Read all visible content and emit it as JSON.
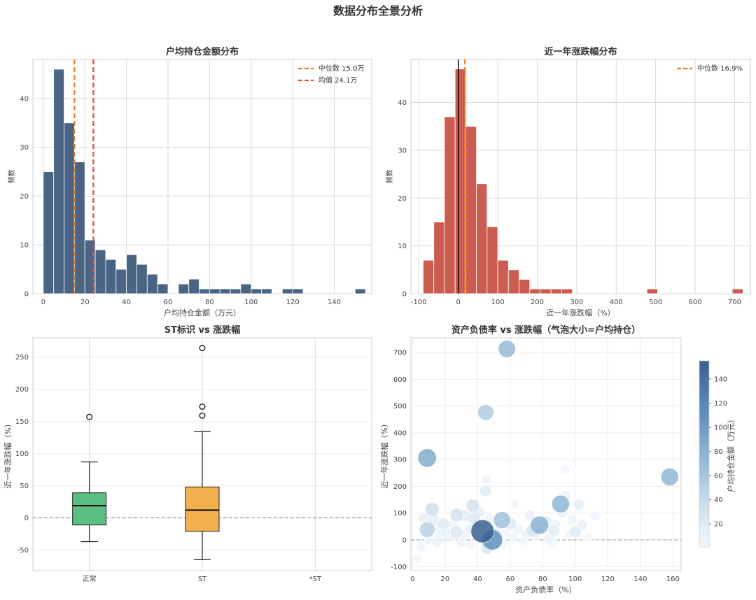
{
  "figure": {
    "suptitle": "数据分布全景分析"
  },
  "chart_data": [
    {
      "type": "histogram",
      "title": "户均持仓金额分布",
      "xlabel": "户均持仓金额（万元）",
      "ylabel": "频数",
      "xlim": [
        -5,
        158
      ],
      "ylim": [
        0,
        48
      ],
      "xticks": [
        0,
        20,
        40,
        60,
        80,
        100,
        120,
        140
      ],
      "yticks": [
        0,
        10,
        20,
        30,
        40
      ],
      "bin_width": 5,
      "bar_color": "#4a6584",
      "bins": [
        {
          "x0": 0,
          "x1": 5,
          "count": 25
        },
        {
          "x0": 5,
          "x1": 10,
          "count": 46
        },
        {
          "x0": 10,
          "x1": 15,
          "count": 35
        },
        {
          "x0": 15,
          "x1": 20,
          "count": 27
        },
        {
          "x0": 20,
          "x1": 25,
          "count": 11
        },
        {
          "x0": 25,
          "x1": 30,
          "count": 9
        },
        {
          "x0": 30,
          "x1": 35,
          "count": 7
        },
        {
          "x0": 35,
          "x1": 40,
          "count": 5
        },
        {
          "x0": 40,
          "x1": 45,
          "count": 8
        },
        {
          "x0": 45,
          "x1": 50,
          "count": 6
        },
        {
          "x0": 50,
          "x1": 55,
          "count": 4
        },
        {
          "x0": 55,
          "x1": 60,
          "count": 2
        },
        {
          "x0": 60,
          "x1": 65,
          "count": 0
        },
        {
          "x0": 65,
          "x1": 70,
          "count": 2
        },
        {
          "x0": 70,
          "x1": 75,
          "count": 3
        },
        {
          "x0": 75,
          "x1": 80,
          "count": 1
        },
        {
          "x0": 80,
          "x1": 85,
          "count": 1
        },
        {
          "x0": 85,
          "x1": 90,
          "count": 1
        },
        {
          "x0": 90,
          "x1": 95,
          "count": 1
        },
        {
          "x0": 95,
          "x1": 100,
          "count": 2
        },
        {
          "x0": 100,
          "x1": 105,
          "count": 1
        },
        {
          "x0": 105,
          "x1": 110,
          "count": 1
        },
        {
          "x0": 110,
          "x1": 115,
          "count": 0
        },
        {
          "x0": 115,
          "x1": 120,
          "count": 1
        },
        {
          "x0": 120,
          "x1": 125,
          "count": 1
        },
        {
          "x0": 125,
          "x1": 130,
          "count": 0
        },
        {
          "x0": 130,
          "x1": 135,
          "count": 0
        },
        {
          "x0": 135,
          "x1": 140,
          "count": 0
        },
        {
          "x0": 140,
          "x1": 145,
          "count": 0
        },
        {
          "x0": 145,
          "x1": 150,
          "count": 0
        },
        {
          "x0": 150,
          "x1": 155,
          "count": 1
        }
      ],
      "vlines": [
        {
          "x": 15.0,
          "color": "#e67e22",
          "label": "中位数 15.0万"
        },
        {
          "x": 24.1,
          "color": "#e74c3c",
          "label": "均值 24.1万"
        }
      ],
      "legend": "top-right"
    },
    {
      "type": "histogram",
      "title": "近一年涨跌幅分布",
      "xlabel": "近一年涨跌幅（%）",
      "ylabel": "频数",
      "xlim": [
        -120,
        740
      ],
      "ylim": [
        0,
        49
      ],
      "xticks": [
        -100,
        0,
        100,
        200,
        300,
        400,
        500,
        600,
        700
      ],
      "yticks": [
        0,
        10,
        20,
        30,
        40
      ],
      "bin_width": 27,
      "bar_color": "#cd5c50",
      "bins": [
        {
          "x0": -89,
          "x1": -62,
          "count": 7
        },
        {
          "x0": -62,
          "x1": -35,
          "count": 15
        },
        {
          "x0": -35,
          "x1": -8,
          "count": 37
        },
        {
          "x0": -8,
          "x1": 19,
          "count": 47
        },
        {
          "x0": 19,
          "x1": 46,
          "count": 35
        },
        {
          "x0": 46,
          "x1": 73,
          "count": 23
        },
        {
          "x0": 73,
          "x1": 100,
          "count": 14
        },
        {
          "x0": 100,
          "x1": 127,
          "count": 7
        },
        {
          "x0": 127,
          "x1": 154,
          "count": 5
        },
        {
          "x0": 154,
          "x1": 181,
          "count": 3
        },
        {
          "x0": 181,
          "x1": 208,
          "count": 1
        },
        {
          "x0": 208,
          "x1": 235,
          "count": 1
        },
        {
          "x0": 235,
          "x1": 262,
          "count": 1
        },
        {
          "x0": 262,
          "x1": 289,
          "count": 1
        },
        {
          "x0": 289,
          "x1": 316,
          "count": 0
        },
        {
          "x0": 316,
          "x1": 343,
          "count": 0
        },
        {
          "x0": 343,
          "x1": 370,
          "count": 0
        },
        {
          "x0": 370,
          "x1": 397,
          "count": 0
        },
        {
          "x0": 397,
          "x1": 424,
          "count": 0
        },
        {
          "x0": 424,
          "x1": 451,
          "count": 0
        },
        {
          "x0": 451,
          "x1": 478,
          "count": 0
        },
        {
          "x0": 478,
          "x1": 505,
          "count": 1
        },
        {
          "x0": 505,
          "x1": 532,
          "count": 0
        },
        {
          "x0": 532,
          "x1": 559,
          "count": 0
        },
        {
          "x0": 559,
          "x1": 586,
          "count": 0
        },
        {
          "x0": 586,
          "x1": 613,
          "count": 0
        },
        {
          "x0": 613,
          "x1": 640,
          "count": 0
        },
        {
          "x0": 640,
          "x1": 667,
          "count": 0
        },
        {
          "x0": 667,
          "x1": 694,
          "count": 0
        },
        {
          "x0": 694,
          "x1": 721,
          "count": 1
        }
      ],
      "zero_line": 0,
      "vlines": [
        {
          "x": 16.9,
          "color": "#e67e22",
          "label": "中位数 16.9%"
        }
      ],
      "legend": "top-right"
    },
    {
      "type": "box",
      "title": "ST标识 vs 涨跌幅",
      "xlabel": "",
      "ylabel": "近一年涨跌幅（%）",
      "ylim": [
        -82,
        280
      ],
      "yticks": [
        -50,
        0,
        50,
        100,
        150,
        200,
        250
      ],
      "reference_line": 0,
      "groups": [
        {
          "label": "正常",
          "color": "#5bbf85",
          "whisker_low": -37,
          "q1": -11,
          "median": 19,
          "q3": 39,
          "whisker_high": 87,
          "outliers": [
            157
          ]
        },
        {
          "label": "ST",
          "color": "#f3b04f",
          "whisker_low": -65,
          "q1": -21,
          "median": 12,
          "q3": 48,
          "whisker_high": 134,
          "outliers": [
            159,
            173,
            264
          ]
        },
        {
          "label": "*ST",
          "color": "#e74c3c",
          "whisker_low": null,
          "q1": null,
          "median": null,
          "q3": null,
          "whisker_high": null,
          "outliers": []
        }
      ]
    },
    {
      "type": "scatter",
      "title": "资产负债率 vs 涨跌幅（气泡大小=户均持仓）",
      "xlabel": "资产负债率（%）",
      "ylabel": "近一年涨跌幅（%）",
      "xlim": [
        -1,
        165
      ],
      "ylim": [
        -115,
        755
      ],
      "xticks": [
        0,
        20,
        40,
        60,
        80,
        100,
        120,
        140,
        160
      ],
      "yticks": [
        -100,
        0,
        100,
        200,
        300,
        400,
        500,
        600,
        700
      ],
      "reference_line": 0,
      "size_encodes": "户均持仓金额（万元）",
      "colorbar": {
        "label": "户均持仓金额（万元）",
        "min": 1,
        "max": 155,
        "ticks": [
          20,
          40,
          60,
          80,
          100,
          120,
          140
        ],
        "colors": [
          "#f4f9fd",
          "#c8dcec",
          "#8cb4d3",
          "#5a8ab8",
          "#3a5f8f"
        ]
      },
      "points": [
        {
          "x": 58,
          "y": 713,
          "v": 70
        },
        {
          "x": 45,
          "y": 476,
          "v": 55
        },
        {
          "x": 9,
          "y": 306,
          "v": 85
        },
        {
          "x": 158,
          "y": 235,
          "v": 75
        },
        {
          "x": 91,
          "y": 134,
          "v": 75
        },
        {
          "x": 12,
          "y": 113,
          "v": 35
        },
        {
          "x": 37,
          "y": 128,
          "v": 30
        },
        {
          "x": 27,
          "y": 93,
          "v": 30
        },
        {
          "x": 38,
          "y": 80,
          "v": 25
        },
        {
          "x": 55,
          "y": 74,
          "v": 65
        },
        {
          "x": 78,
          "y": 55,
          "v": 80
        },
        {
          "x": 9,
          "y": 38,
          "v": 50
        },
        {
          "x": 43,
          "y": 32,
          "v": 155
        },
        {
          "x": 49,
          "y": 0,
          "v": 110
        },
        {
          "x": 45,
          "y": 183,
          "v": 20
        },
        {
          "x": 45,
          "y": 225,
          "v": 8
        },
        {
          "x": 94,
          "y": 262,
          "v": 5
        },
        {
          "x": 102,
          "y": 132,
          "v": 15
        },
        {
          "x": 94,
          "y": 165,
          "v": 10
        },
        {
          "x": 32,
          "y": 90,
          "v": 18
        },
        {
          "x": 19,
          "y": 60,
          "v": 20
        },
        {
          "x": 13,
          "y": 75,
          "v": 15
        },
        {
          "x": 60,
          "y": 60,
          "v": 22
        },
        {
          "x": 74,
          "y": 36,
          "v": 30
        },
        {
          "x": 87,
          "y": 35,
          "v": 18
        },
        {
          "x": 100,
          "y": 30,
          "v": 20
        },
        {
          "x": 46,
          "y": -30,
          "v": 25
        },
        {
          "x": 27,
          "y": 28,
          "v": 25
        },
        {
          "x": 7,
          "y": 80,
          "v": 12
        },
        {
          "x": 14,
          "y": 45,
          "v": 10
        },
        {
          "x": 17,
          "y": 20,
          "v": 8
        },
        {
          "x": 23,
          "y": 10,
          "v": 6
        },
        {
          "x": 30,
          "y": -10,
          "v": 8
        },
        {
          "x": 35,
          "y": 40,
          "v": 12
        },
        {
          "x": 40,
          "y": 60,
          "v": 10
        },
        {
          "x": 52,
          "y": 20,
          "v": 14
        },
        {
          "x": 55,
          "y": -15,
          "v": 8
        },
        {
          "x": 62,
          "y": 10,
          "v": 6
        },
        {
          "x": 65,
          "y": 40,
          "v": 10
        },
        {
          "x": 68,
          "y": -5,
          "v": 5
        },
        {
          "x": 72,
          "y": 90,
          "v": 12
        },
        {
          "x": 76,
          "y": 15,
          "v": 8
        },
        {
          "x": 82,
          "y": 70,
          "v": 15
        },
        {
          "x": 84,
          "y": 5,
          "v": 10
        },
        {
          "x": 88,
          "y": 60,
          "v": 8
        },
        {
          "x": 92,
          "y": 100,
          "v": 10
        },
        {
          "x": 96,
          "y": 20,
          "v": 6
        },
        {
          "x": 104,
          "y": 55,
          "v": 12
        },
        {
          "x": 108,
          "y": 10,
          "v": 5
        },
        {
          "x": 112,
          "y": 90,
          "v": 7
        },
        {
          "x": 3,
          "y": -70,
          "v": 5
        },
        {
          "x": 5,
          "y": -25,
          "v": 8
        },
        {
          "x": 10,
          "y": 0,
          "v": 6
        },
        {
          "x": 15,
          "y": -10,
          "v": 10
        },
        {
          "x": 20,
          "y": 30,
          "v": 12
        },
        {
          "x": 25,
          "y": 55,
          "v": 7
        },
        {
          "x": 33,
          "y": 20,
          "v": 9
        },
        {
          "x": 36,
          "y": -20,
          "v": 6
        },
        {
          "x": 41,
          "y": 105,
          "v": 14
        },
        {
          "x": 48,
          "y": 80,
          "v": 9
        },
        {
          "x": 51,
          "y": 45,
          "v": 11
        },
        {
          "x": 57,
          "y": 25,
          "v": 7
        },
        {
          "x": 63,
          "y": 135,
          "v": 6
        },
        {
          "x": 70,
          "y": 20,
          "v": 9
        },
        {
          "x": 80,
          "y": 40,
          "v": 11
        },
        {
          "x": 86,
          "y": -10,
          "v": 5
        },
        {
          "x": 98,
          "y": 75,
          "v": 9
        }
      ]
    }
  ]
}
